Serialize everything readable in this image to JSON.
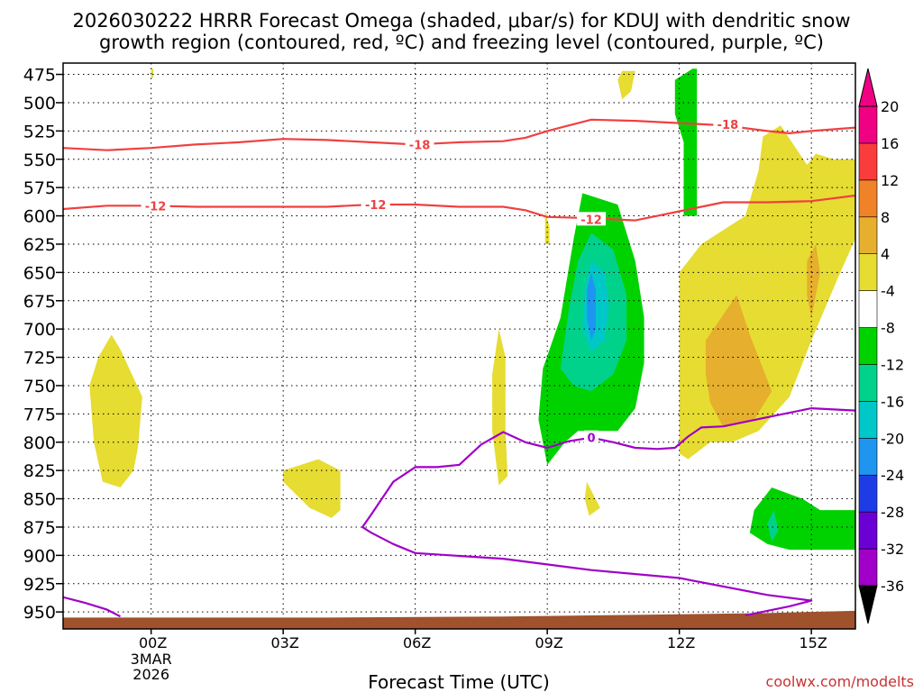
{
  "title_line1": "2026030222 HRRR Forecast Omega (shaded, μbar/s) for KDUJ with dendritic snow",
  "title_line2": "growth region (contoured, red, ºC) and freezing level (contoured, purple, ºC)",
  "xlabel": "Forecast Time (UTC)",
  "watermark": "coolwx.com/modelts",
  "chart_data": {
    "type": "contour",
    "x_ticks": [
      {
        "x": 0,
        "label": "00Z",
        "sub": [
          "3MAR",
          "2026"
        ]
      },
      {
        "x": 3,
        "label": "03Z"
      },
      {
        "x": 6,
        "label": "06Z"
      },
      {
        "x": 9,
        "label": "09Z"
      },
      {
        "x": 12,
        "label": "12Z"
      },
      {
        "x": 15,
        "label": "15Z"
      }
    ],
    "xlim": [
      -2,
      16
    ],
    "y_ticks": [
      475,
      500,
      525,
      550,
      575,
      600,
      625,
      650,
      675,
      700,
      725,
      750,
      775,
      800,
      825,
      850,
      875,
      900,
      925,
      950
    ],
    "ylim": [
      465,
      965
    ],
    "ylabel": "",
    "grid": true,
    "colorbar": {
      "levels": [
        -36,
        -32,
        -28,
        -24,
        -20,
        -16,
        -12,
        -8,
        -4,
        4,
        8,
        12,
        16,
        20
      ],
      "colors": [
        "#a9a9a9",
        "#a000c8",
        "#6a00d4",
        "#1e3ce6",
        "#1e96f0",
        "#00c8c8",
        "#00d28c",
        "#00d200",
        "#ffffff",
        "#e6dc32",
        "#e6af2d",
        "#f08228",
        "#fa3c3c",
        "#f00082"
      ]
    },
    "shaded": [
      {
        "name": "omega_pos_4",
        "color": "#e6dc32",
        "points": [
          [
            -1.2,
            725
          ],
          [
            -0.9,
            705
          ],
          [
            -0.7,
            718
          ],
          [
            -0.2,
            760
          ],
          [
            -0.3,
            805
          ],
          [
            -0.4,
            825
          ],
          [
            -0.7,
            840
          ],
          [
            -1.1,
            835
          ],
          [
            -1.3,
            800
          ],
          [
            -1.4,
            750
          ]
        ]
      },
      {
        "name": "omega_pos_4",
        "color": "#e6dc32",
        "points": [
          [
            0,
            470
          ],
          [
            0.05,
            470
          ],
          [
            0.05,
            478
          ],
          [
            0,
            478
          ]
        ]
      },
      {
        "name": "omega_pos_4",
        "color": "#e6dc32",
        "points": [
          [
            3,
            825
          ],
          [
            3.8,
            815
          ],
          [
            4.3,
            825
          ],
          [
            4.3,
            860
          ],
          [
            4.1,
            867
          ],
          [
            3.6,
            858
          ],
          [
            3,
            835
          ]
        ]
      },
      {
        "name": "omega_pos_4",
        "color": "#e6dc32",
        "points": [
          [
            7.9,
            700
          ],
          [
            8.05,
            725
          ],
          [
            8.05,
            790
          ],
          [
            8.1,
            830
          ],
          [
            7.9,
            838
          ],
          [
            7.75,
            790
          ],
          [
            7.75,
            740
          ]
        ]
      },
      {
        "name": "omega_pos_4",
        "color": "#e6dc32",
        "points": [
          [
            8.95,
            595
          ],
          [
            9.05,
            610
          ],
          [
            9.05,
            625
          ],
          [
            8.95,
            625
          ]
        ]
      },
      {
        "name": "omega_pos_4",
        "color": "#e6dc32",
        "points": [
          [
            9.9,
            835
          ],
          [
            10.2,
            858
          ],
          [
            9.95,
            865
          ],
          [
            9.85,
            850
          ]
        ]
      },
      {
        "name": "omega_pos_4",
        "color": "#e6dc32",
        "points": [
          [
            10.7,
            472
          ],
          [
            11.0,
            472
          ],
          [
            10.9,
            490
          ],
          [
            10.7,
            497
          ],
          [
            10.6,
            480
          ]
        ]
      },
      {
        "name": "omega_pos_4",
        "color": "#e6dc32",
        "points": [
          [
            12,
            650
          ],
          [
            12.5,
            625
          ],
          [
            13.5,
            600
          ],
          [
            13.8,
            560
          ],
          [
            13.9,
            530
          ],
          [
            14.3,
            520
          ],
          [
            14.9,
            555
          ],
          [
            15.1,
            545
          ],
          [
            15.5,
            550
          ],
          [
            16,
            550
          ],
          [
            16,
            620
          ],
          [
            15.6,
            655
          ],
          [
            15.0,
            710
          ],
          [
            14.5,
            760
          ],
          [
            13.8,
            790
          ],
          [
            13.2,
            800
          ],
          [
            12.7,
            800
          ],
          [
            12.2,
            815
          ],
          [
            12,
            810
          ]
        ]
      },
      {
        "name": "omega_pos_8",
        "color": "#e6af2d",
        "points": [
          [
            12.6,
            710
          ],
          [
            13.3,
            670
          ],
          [
            13.6,
            705
          ],
          [
            14.1,
            755
          ],
          [
            13.7,
            780
          ],
          [
            13.0,
            787
          ],
          [
            12.7,
            765
          ],
          [
            12.6,
            740
          ]
        ]
      },
      {
        "name": "omega_pos_8",
        "color": "#e6af2d",
        "points": [
          [
            14.9,
            640
          ],
          [
            15.1,
            625
          ],
          [
            15.2,
            650
          ],
          [
            15.0,
            690
          ],
          [
            14.9,
            670
          ]
        ]
      },
      {
        "name": "omega_neg_4",
        "color": "#00d200",
        "points": [
          [
            12.3,
            470
          ],
          [
            12.4,
            470
          ],
          [
            12.4,
            600
          ],
          [
            12.1,
            600
          ],
          [
            12.1,
            535
          ],
          [
            11.9,
            510
          ],
          [
            11.9,
            480
          ]
        ]
      },
      {
        "name": "omega_neg_4",
        "color": "#00d200",
        "points": [
          [
            9.8,
            580
          ],
          [
            10.6,
            590
          ],
          [
            11,
            640
          ],
          [
            11.2,
            690
          ],
          [
            11.2,
            730
          ],
          [
            11.0,
            770
          ],
          [
            10.6,
            790
          ],
          [
            10.0,
            790
          ],
          [
            9.7,
            790
          ],
          [
            9.4,
            800
          ],
          [
            9.0,
            820
          ],
          [
            8.8,
            780
          ],
          [
            8.9,
            735
          ],
          [
            9.3,
            690
          ],
          [
            9.6,
            620
          ]
        ]
      },
      {
        "name": "omega_neg_8",
        "color": "#00d28c",
        "points": [
          [
            10.0,
            615
          ],
          [
            10.5,
            630
          ],
          [
            10.8,
            670
          ],
          [
            10.8,
            710
          ],
          [
            10.5,
            740
          ],
          [
            10.0,
            755
          ],
          [
            9.6,
            750
          ],
          [
            9.3,
            735
          ],
          [
            9.5,
            680
          ],
          [
            9.7,
            640
          ]
        ]
      },
      {
        "name": "omega_neg_12",
        "color": "#00c8c8",
        "points": [
          [
            10.0,
            640
          ],
          [
            10.3,
            650
          ],
          [
            10.4,
            680
          ],
          [
            10.3,
            710
          ],
          [
            10.0,
            720
          ],
          [
            9.8,
            700
          ],
          [
            9.85,
            665
          ]
        ]
      },
      {
        "name": "omega_neg_16",
        "color": "#1e96f0",
        "points": [
          [
            10.0,
            650
          ],
          [
            10.1,
            665
          ],
          [
            10.1,
            700
          ],
          [
            10.0,
            710
          ],
          [
            9.9,
            690
          ],
          [
            9.9,
            665
          ]
        ]
      },
      {
        "name": "omega_neg_4",
        "color": "#00d200",
        "points": [
          [
            13.7,
            860
          ],
          [
            14.1,
            840
          ],
          [
            14.8,
            850
          ],
          [
            15.2,
            860
          ],
          [
            16,
            860
          ],
          [
            16,
            895
          ],
          [
            15,
            895
          ],
          [
            14.5,
            895
          ],
          [
            14.0,
            890
          ],
          [
            13.6,
            880
          ]
        ]
      },
      {
        "name": "omega_neg_8",
        "color": "#00d28c",
        "points": [
          [
            14.0,
            872
          ],
          [
            14.15,
            860
          ],
          [
            14.25,
            878
          ],
          [
            14.1,
            888
          ]
        ]
      }
    ],
    "contours": [
      {
        "name": "-18",
        "color": "#f04040",
        "points": [
          [
            -2,
            540
          ],
          [
            -1,
            542
          ],
          [
            0,
            540
          ],
          [
            1,
            537
          ],
          [
            2,
            535
          ],
          [
            3,
            532
          ],
          [
            4,
            533
          ],
          [
            5,
            535
          ],
          [
            6,
            537
          ],
          [
            7,
            535
          ],
          [
            8,
            534
          ],
          [
            8.5,
            531
          ],
          [
            9,
            525
          ],
          [
            9.5,
            520
          ],
          [
            10,
            515
          ],
          [
            11,
            516
          ],
          [
            12,
            518
          ],
          [
            13,
            520
          ],
          [
            14,
            525
          ],
          [
            14.5,
            527
          ],
          [
            15,
            525
          ],
          [
            16,
            522
          ]
        ],
        "labels": [
          [
            6.1,
            537
          ],
          [
            13.1,
            519
          ]
        ]
      },
      {
        "name": "-12",
        "color": "#f04040",
        "points": [
          [
            -2,
            594
          ],
          [
            -1,
            591
          ],
          [
            0,
            591
          ],
          [
            1,
            592
          ],
          [
            2,
            592
          ],
          [
            3,
            592
          ],
          [
            4,
            592
          ],
          [
            5,
            590
          ],
          [
            6,
            590
          ],
          [
            7,
            592
          ],
          [
            8,
            592
          ],
          [
            8.5,
            595
          ],
          [
            9,
            601
          ],
          [
            10,
            602
          ],
          [
            11,
            604
          ],
          [
            11.5,
            600
          ],
          [
            12,
            596
          ],
          [
            12.5,
            592
          ],
          [
            13,
            588
          ],
          [
            14,
            588
          ],
          [
            15,
            587
          ],
          [
            16,
            582
          ]
        ],
        "labels": [
          [
            0.1,
            591
          ],
          [
            5.1,
            590
          ],
          [
            10,
            603
          ]
        ]
      },
      {
        "name": "0",
        "color": "#a000c8",
        "points": [
          [
            -2,
            937
          ],
          [
            -1.5,
            942
          ],
          [
            -1,
            948
          ],
          [
            -0.7,
            954
          ]
        ],
        "labels": []
      },
      {
        "name": "0",
        "color": "#a000c8",
        "points": [
          [
            16,
            772
          ],
          [
            15,
            770
          ],
          [
            14,
            778
          ],
          [
            13,
            786
          ],
          [
            12.5,
            787
          ],
          [
            12.2,
            795
          ],
          [
            11.9,
            805
          ],
          [
            11.5,
            806
          ],
          [
            11,
            805
          ],
          [
            10.5,
            800
          ],
          [
            10,
            796
          ],
          [
            9.5,
            799
          ],
          [
            9,
            805
          ],
          [
            8.5,
            800
          ],
          [
            8,
            791
          ],
          [
            7.5,
            802
          ],
          [
            7,
            820
          ],
          [
            6.5,
            822
          ],
          [
            6,
            822
          ],
          [
            5.5,
            835
          ],
          [
            5,
            864
          ],
          [
            4.8,
            875
          ],
          [
            5,
            880
          ],
          [
            5.5,
            890
          ],
          [
            6,
            898
          ],
          [
            8,
            903
          ],
          [
            10,
            913
          ],
          [
            12,
            920
          ],
          [
            14,
            935
          ],
          [
            15,
            940
          ],
          [
            14.5,
            945
          ],
          [
            13.5,
            953
          ]
        ],
        "labels": [
          [
            10,
            796
          ]
        ]
      }
    ],
    "terrain": {
      "color": "#a0522d",
      "points": [
        [
          -2,
          955
        ],
        [
          4,
          955
        ],
        [
          8,
          954
        ],
        [
          12,
          952
        ],
        [
          14,
          951
        ],
        [
          16,
          949
        ]
      ]
    }
  }
}
